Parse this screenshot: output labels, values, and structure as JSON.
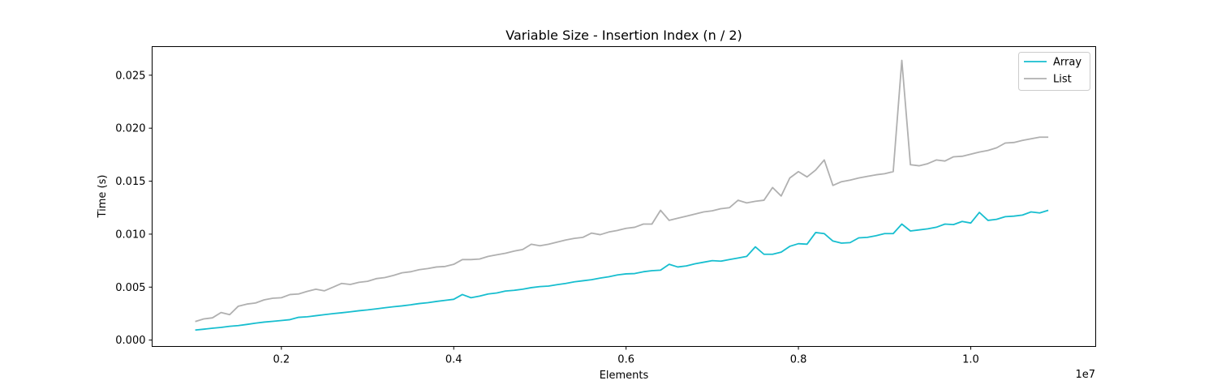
{
  "chart_data": {
    "type": "line",
    "title": "Variable Size - Insertion Index (n / 2)",
    "xlabel": "Elements",
    "ylabel": "Time (s)",
    "x_offset_text": "1e7",
    "xlim": [
      0.05,
      1.145
    ],
    "ylim": [
      -0.0006,
      0.0277
    ],
    "x_ticks": [
      0.2,
      0.4,
      0.6,
      0.8,
      1.0
    ],
    "x_tick_labels": [
      "0.2",
      "0.4",
      "0.6",
      "0.8",
      "1.0"
    ],
    "y_ticks": [
      0.0,
      0.005,
      0.01,
      0.015,
      0.02,
      0.025
    ],
    "y_tick_labels": [
      "0.000",
      "0.005",
      "0.010",
      "0.015",
      "0.020",
      "0.025"
    ],
    "grid": false,
    "legend_position": "top-right",
    "x": [
      0.1,
      0.11,
      0.12,
      0.13,
      0.14,
      0.15,
      0.16,
      0.17,
      0.18,
      0.19,
      0.2,
      0.21,
      0.22,
      0.23,
      0.24,
      0.25,
      0.26,
      0.27,
      0.28,
      0.29,
      0.3,
      0.31,
      0.32,
      0.33,
      0.34,
      0.35,
      0.36,
      0.37,
      0.38,
      0.39,
      0.4,
      0.41,
      0.42,
      0.43,
      0.44,
      0.45,
      0.46,
      0.47,
      0.48,
      0.49,
      0.5,
      0.51,
      0.52,
      0.53,
      0.54,
      0.55,
      0.56,
      0.57,
      0.58,
      0.59,
      0.6,
      0.61,
      0.62,
      0.63,
      0.64,
      0.65,
      0.66,
      0.67,
      0.68,
      0.69,
      0.7,
      0.71,
      0.72,
      0.73,
      0.74,
      0.75,
      0.76,
      0.77,
      0.78,
      0.79,
      0.8,
      0.81,
      0.82,
      0.83,
      0.84,
      0.85,
      0.86,
      0.87,
      0.88,
      0.89,
      0.9,
      0.91,
      0.92,
      0.93,
      0.94,
      0.95,
      0.96,
      0.97,
      0.98,
      0.99,
      1.0,
      1.01,
      1.02,
      1.03,
      1.04,
      1.05,
      1.06,
      1.07,
      1.08,
      1.09
    ],
    "series": [
      {
        "name": "Array",
        "color": "#17becf",
        "values": [
          0.00095,
          0.00103,
          0.00112,
          0.0012,
          0.0013,
          0.00137,
          0.00148,
          0.0016,
          0.0017,
          0.00177,
          0.00185,
          0.00193,
          0.00215,
          0.0022,
          0.0023,
          0.0024,
          0.0025,
          0.00258,
          0.00267,
          0.00277,
          0.00285,
          0.00295,
          0.00305,
          0.00315,
          0.00323,
          0.00333,
          0.00345,
          0.00353,
          0.00365,
          0.00375,
          0.00385,
          0.0043,
          0.004,
          0.00415,
          0.00435,
          0.00445,
          0.00463,
          0.0047,
          0.0048,
          0.00495,
          0.00505,
          0.0051,
          0.00523,
          0.00535,
          0.0055,
          0.0056,
          0.0057,
          0.00585,
          0.00598,
          0.00615,
          0.00625,
          0.00628,
          0.00645,
          0.00655,
          0.0066,
          0.00715,
          0.0069,
          0.007,
          0.0072,
          0.00735,
          0.0075,
          0.00745,
          0.0076,
          0.00775,
          0.0079,
          0.0088,
          0.0081,
          0.0081,
          0.0083,
          0.00885,
          0.0091,
          0.00905,
          0.01015,
          0.01005,
          0.00935,
          0.00915,
          0.0092,
          0.00965,
          0.0097,
          0.00985,
          0.01005,
          0.01005,
          0.01095,
          0.0103,
          0.0104,
          0.0105,
          0.01065,
          0.01095,
          0.0109,
          0.0112,
          0.01105,
          0.01205,
          0.0113,
          0.0114,
          0.01165,
          0.0117,
          0.0118,
          0.0121,
          0.012,
          0.01225
        ]
      },
      {
        "name": "List",
        "color": "#b0b0b0",
        "values": [
          0.00175,
          0.002,
          0.0021,
          0.0026,
          0.0024,
          0.0032,
          0.0034,
          0.0035,
          0.0038,
          0.00395,
          0.004,
          0.0043,
          0.00435,
          0.0046,
          0.0048,
          0.00465,
          0.005,
          0.00535,
          0.00525,
          0.00545,
          0.00555,
          0.0058,
          0.0059,
          0.0061,
          0.00635,
          0.00645,
          0.00665,
          0.00675,
          0.0069,
          0.00695,
          0.00715,
          0.0076,
          0.0076,
          0.00765,
          0.0079,
          0.00805,
          0.0082,
          0.0084,
          0.00855,
          0.00905,
          0.0089,
          0.00905,
          0.00925,
          0.00945,
          0.0096,
          0.0097,
          0.0101,
          0.00995,
          0.0102,
          0.01035,
          0.01055,
          0.01065,
          0.01095,
          0.01095,
          0.01225,
          0.0113,
          0.0115,
          0.0117,
          0.0119,
          0.0121,
          0.0122,
          0.0124,
          0.0125,
          0.0132,
          0.01295,
          0.0131,
          0.0132,
          0.0144,
          0.0136,
          0.0153,
          0.0159,
          0.0154,
          0.01605,
          0.017,
          0.0146,
          0.01495,
          0.0151,
          0.0153,
          0.01545,
          0.0156,
          0.0157,
          0.0159,
          0.0264,
          0.01655,
          0.01645,
          0.01665,
          0.017,
          0.0169,
          0.0173,
          0.01735,
          0.01755,
          0.01775,
          0.0179,
          0.01815,
          0.0186,
          0.01865,
          0.01885,
          0.019,
          0.01915,
          0.01915
        ]
      }
    ]
  }
}
